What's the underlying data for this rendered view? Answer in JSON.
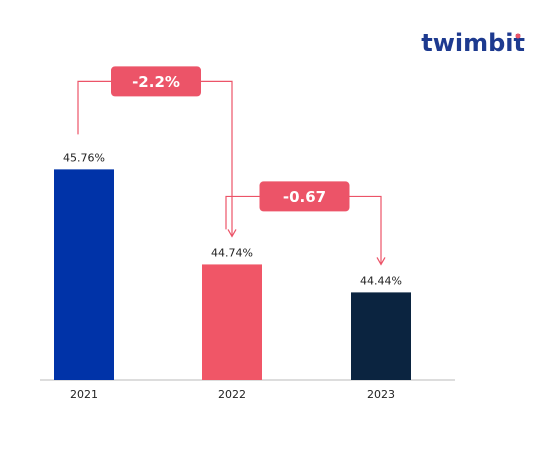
{
  "logo": "twimbit",
  "chart_data": {
    "type": "bar",
    "categories": [
      "2021",
      "2022",
      "2023"
    ],
    "values": [
      45.76,
      44.74,
      44.44
    ],
    "value_labels": [
      "45.76%",
      "44.74%",
      "44.44%"
    ],
    "colors": [
      "#0033a8",
      "#f05667",
      "#0b2440"
    ],
    "annotations": [
      "-2.2%",
      "-0.67"
    ],
    "annotation_color": "#ec5468",
    "ylim": [
      43.5,
      46
    ]
  }
}
